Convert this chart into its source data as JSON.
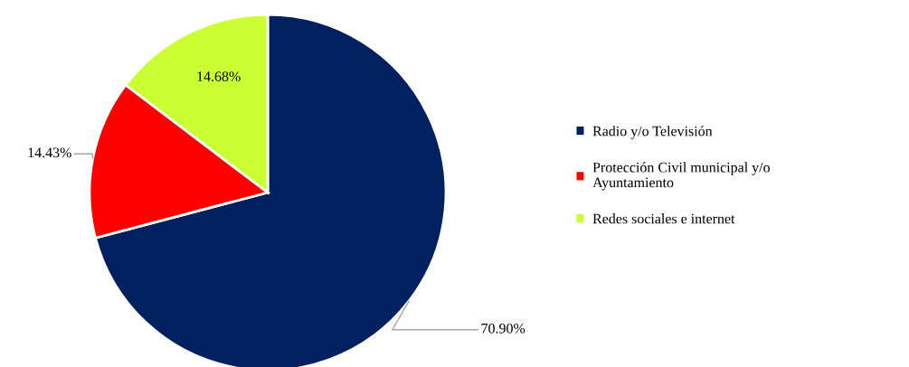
{
  "chart_data": {
    "type": "pie",
    "categories": [
      "Radio y/o Televisión",
      "Protección Civil municipal y/o Ayuntamiento",
      "Redes sociales e internet"
    ],
    "values": [
      70.9,
      14.43,
      14.68
    ],
    "colors": [
      "#002060",
      "#ff0000",
      "#ccff33"
    ],
    "value_labels": [
      "70.90%",
      "14.43%",
      "14.68%"
    ],
    "legend": "right"
  }
}
